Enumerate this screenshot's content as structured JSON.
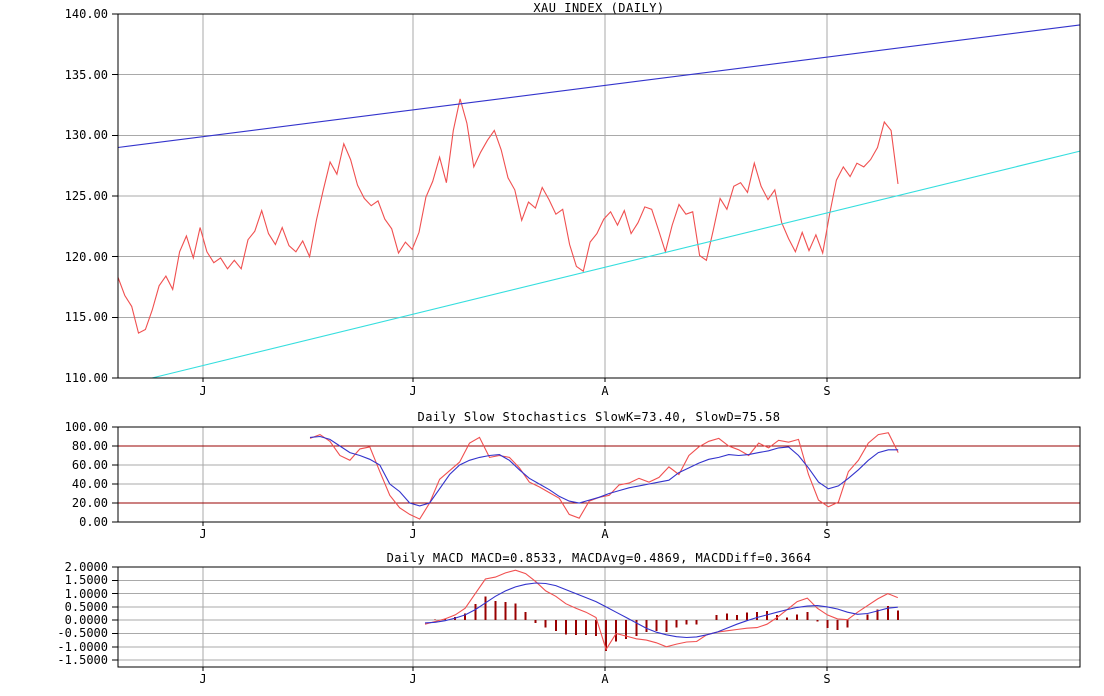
{
  "app": {
    "name": "XAU INDEX (DAILY)"
  },
  "colors": {
    "background": "#ffffff",
    "text": "#000000",
    "frame": "#000000",
    "grid": "#a9a9a9",
    "price_red": "#f05050",
    "signal_blue": "#3333cc",
    "channel_cyan": "#35dede",
    "dark_red": "#990000"
  },
  "chart_data": [
    {
      "id": "price",
      "type": "line",
      "title": "XAU INDEX (DAILY)",
      "ylim": [
        110,
        140
      ],
      "yticks": [
        {
          "v": 140,
          "label": "140.00"
        },
        {
          "v": 135,
          "label": "135.00"
        },
        {
          "v": 130,
          "label": "130.00"
        },
        {
          "v": 125,
          "label": "125.00"
        },
        {
          "v": 120,
          "label": "120.00"
        },
        {
          "v": 115,
          "label": "115.00"
        },
        {
          "v": 110,
          "label": "110.00"
        }
      ],
      "gridlines": [
        135,
        130,
        125,
        120,
        115
      ],
      "hlines": [],
      "months": [
        {
          "label": "J",
          "x": 203
        },
        {
          "label": "J",
          "x": 413
        },
        {
          "label": "A",
          "x": 605
        },
        {
          "label": "S",
          "x": 827
        }
      ],
      "series": [
        {
          "name": "xau-price-line",
          "color_key": "price_red",
          "x0": 118,
          "dx": 6.842,
          "values": [
            118.3,
            116.8,
            115.9,
            113.7,
            114.0,
            115.6,
            117.6,
            118.4,
            117.3,
            120.4,
            121.7,
            119.9,
            122.4,
            120.4,
            119.5,
            119.9,
            119.0,
            119.7,
            119.0,
            121.4,
            122.1,
            123.8,
            121.9,
            121.0,
            122.4,
            120.9,
            120.4,
            121.3,
            120.0,
            123.0,
            125.5,
            127.8,
            126.8,
            129.3,
            128.0,
            125.9,
            124.8,
            124.2,
            124.6,
            123.1,
            122.3,
            120.3,
            121.2,
            120.6,
            122.0,
            124.9,
            126.2,
            128.2,
            126.1,
            130.4,
            133.0,
            131.0,
            127.4,
            128.6,
            129.6,
            130.4,
            128.8,
            126.5,
            125.5,
            123.0,
            124.5,
            124.0,
            125.7,
            124.7,
            123.5,
            123.9,
            121.0,
            119.2,
            118.8,
            121.2,
            121.9,
            123.1,
            123.7,
            122.6,
            123.8,
            121.9,
            122.8,
            124.1,
            123.9,
            122.2,
            120.4,
            122.6,
            124.3,
            123.5,
            123.7,
            120.1,
            119.7,
            122.2,
            124.8,
            123.9,
            125.8,
            126.1,
            125.3,
            127.7,
            125.8,
            124.7,
            125.5,
            122.8,
            121.5,
            120.4,
            122.0,
            120.5,
            121.8,
            120.3,
            123.5,
            126.3,
            127.4,
            126.6,
            127.7,
            127.4,
            128.0,
            129.0,
            131.1,
            130.4,
            126.0
          ]
        },
        {
          "name": "upper-trend-line",
          "color_key": "signal_blue",
          "points": [
            [
              118,
              129.0
            ],
            [
              1080,
              139.1
            ]
          ]
        },
        {
          "name": "lower-trend-line",
          "color_key": "channel_cyan",
          "points": [
            [
              152,
              110.0
            ],
            [
              1080,
              128.7
            ]
          ]
        }
      ]
    },
    {
      "id": "stochastics",
      "type": "line",
      "title": "Daily Slow Stochastics SlowK=73.40, SlowD=75.58",
      "readout": {
        "SlowK": "73.40",
        "SlowD": "75.58"
      },
      "ylim": [
        0,
        100
      ],
      "yticks": [
        {
          "v": 100,
          "label": "100.00"
        },
        {
          "v": 80,
          "label": "80.00"
        },
        {
          "v": 60,
          "label": "60.00"
        },
        {
          "v": 40,
          "label": "40.00"
        },
        {
          "v": 20,
          "label": "20.00"
        },
        {
          "v": 0,
          "label": "0.00"
        }
      ],
      "gridlines": [
        60,
        40
      ],
      "hlines": [
        {
          "v": 80,
          "color_key": "dark_red"
        },
        {
          "v": 20,
          "color_key": "dark_red"
        }
      ],
      "months": [
        {
          "label": "J",
          "x": 203
        },
        {
          "label": "J",
          "x": 413
        },
        {
          "label": "A",
          "x": 605
        },
        {
          "label": "S",
          "x": 827
        }
      ],
      "series": [
        {
          "name": "slow-k-line",
          "color_key": "price_red",
          "x0": 310,
          "dx": 9.97,
          "values": [
            88,
            92,
            85,
            70,
            65,
            77,
            79,
            53,
            28,
            15,
            8,
            3,
            20,
            45,
            54,
            63,
            83,
            89,
            68,
            70,
            68,
            57,
            42,
            37,
            31,
            25,
            8,
            4,
            22,
            26,
            28,
            39,
            41,
            46,
            42,
            47,
            58,
            50,
            70,
            79,
            85,
            88,
            80,
            76,
            70,
            83,
            78,
            86,
            84,
            87,
            50,
            23,
            16,
            21,
            53,
            65,
            83,
            92,
            94,
            73
          ]
        },
        {
          "name": "slow-d-line",
          "color_key": "signal_blue",
          "x0": 310,
          "dx": 9.97,
          "values": [
            89,
            90,
            87,
            80,
            73,
            70,
            66,
            60,
            40,
            32,
            20,
            17,
            20,
            35,
            50,
            60,
            65,
            68,
            70,
            71,
            65,
            55,
            46,
            40,
            34,
            27,
            22,
            20,
            23,
            26,
            30,
            33,
            36,
            38,
            40,
            42,
            44,
            52,
            57,
            62,
            66,
            68,
            71,
            70,
            71,
            73,
            75,
            78,
            79,
            70,
            57,
            42,
            35,
            38,
            46,
            55,
            65,
            73,
            76,
            76
          ]
        }
      ]
    },
    {
      "id": "macd",
      "type": "line",
      "title": "Daily MACD MACD=0.8533, MACDAvg=0.4869, MACDDiff=0.3664",
      "readout": {
        "MACD": "0.8533",
        "MACDAvg": "0.4869",
        "MACDDiff": "0.3664"
      },
      "ylim": [
        -1.76,
        2.0
      ],
      "yticks": [
        {
          "v": 2.0,
          "label": "2.0000"
        },
        {
          "v": 1.5,
          "label": "1.5000"
        },
        {
          "v": 1.0,
          "label": "1.0000"
        },
        {
          "v": 0.5,
          "label": "0.5000"
        },
        {
          "v": 0.0,
          "label": "0.0000"
        },
        {
          "v": -0.5,
          "label": "-0.5000"
        },
        {
          "v": -1.0,
          "label": "-1.0000"
        },
        {
          "v": -1.5,
          "label": "-1.5000"
        }
      ],
      "gridlines": [
        1.5,
        1.0,
        0.5,
        0.0,
        -0.5,
        -1.0,
        -1.5
      ],
      "hlines": [],
      "months": [
        {
          "label": "J",
          "x": 203
        },
        {
          "label": "J",
          "x": 413
        },
        {
          "label": "A",
          "x": 605
        },
        {
          "label": "S",
          "x": 827
        }
      ],
      "histogram": {
        "name": "macd-diff-bar",
        "color_key": "dark_red",
        "x0": 425,
        "dx": 10.06,
        "values": [
          0,
          0.02,
          0.07,
          0.12,
          0.25,
          0.6,
          0.9,
          0.72,
          0.68,
          0.63,
          0.3,
          -0.1,
          -0.28,
          -0.4,
          -0.53,
          -0.55,
          -0.55,
          -0.6,
          -1.15,
          -0.8,
          -0.7,
          -0.6,
          -0.45,
          -0.4,
          -0.45,
          -0.28,
          -0.17,
          -0.17,
          0,
          0.2,
          0.25,
          0.2,
          0.28,
          0.3,
          0.35,
          0.2,
          0.1,
          0.22,
          0.3,
          -0.05,
          -0.3,
          -0.37,
          -0.28,
          0.02,
          0.22,
          0.4,
          0.53,
          0.37
        ]
      },
      "series": [
        {
          "name": "macd-line",
          "color_key": "price_red",
          "x0": 425,
          "dx": 10.06,
          "values": [
            -0.15,
            -0.05,
            0.05,
            0.2,
            0.45,
            1.0,
            1.55,
            1.62,
            1.78,
            1.88,
            1.75,
            1.45,
            1.1,
            0.9,
            0.62,
            0.45,
            0.3,
            0.1,
            -1.1,
            -0.5,
            -0.6,
            -0.7,
            -0.75,
            -0.85,
            -1.0,
            -0.9,
            -0.82,
            -0.8,
            -0.55,
            -0.45,
            -0.4,
            -0.35,
            -0.3,
            -0.28,
            -0.15,
            0.1,
            0.4,
            0.7,
            0.83,
            0.45,
            0.2,
            0.05,
            0.02,
            0.3,
            0.55,
            0.8,
            1.0,
            0.85
          ]
        },
        {
          "name": "macd-avg-line",
          "color_key": "signal_blue",
          "x0": 425,
          "dx": 10.06,
          "values": [
            -0.1,
            -0.08,
            -0.02,
            0.08,
            0.2,
            0.4,
            0.65,
            0.9,
            1.1,
            1.25,
            1.35,
            1.4,
            1.38,
            1.3,
            1.15,
            1.0,
            0.85,
            0.7,
            0.5,
            0.3,
            0.1,
            -0.1,
            -0.3,
            -0.45,
            -0.55,
            -0.62,
            -0.65,
            -0.63,
            -0.55,
            -0.45,
            -0.3,
            -0.15,
            -0.02,
            0.1,
            0.2,
            0.3,
            0.4,
            0.48,
            0.53,
            0.55,
            0.5,
            0.42,
            0.3,
            0.22,
            0.25,
            0.35,
            0.45,
            0.49
          ]
        }
      ]
    }
  ]
}
